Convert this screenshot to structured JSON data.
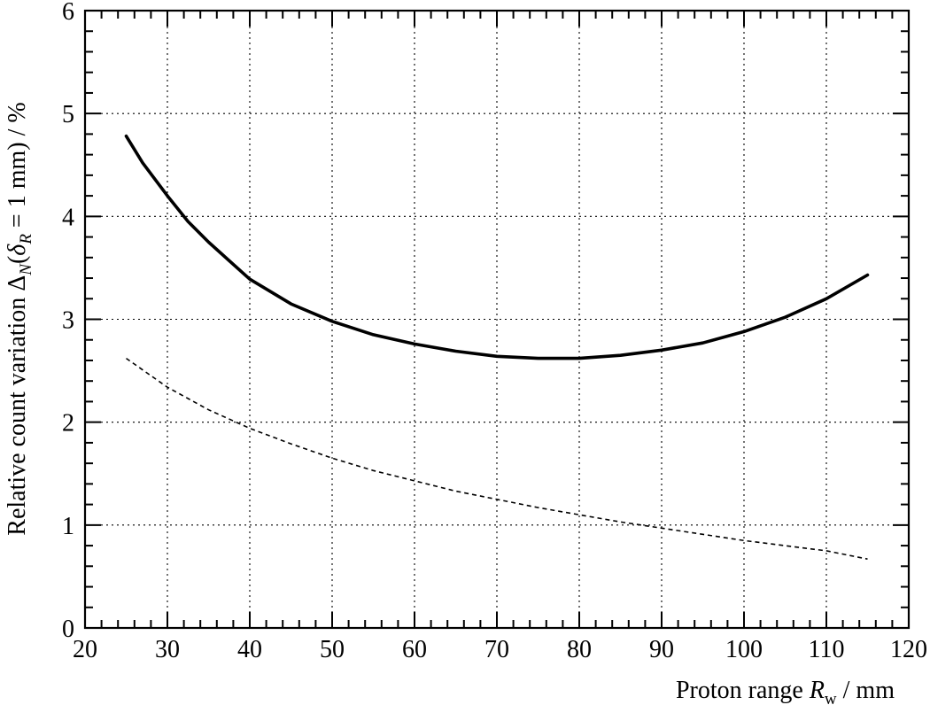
{
  "chart_data": {
    "type": "line",
    "title": "",
    "xlabel": "Proton range R_w / mm",
    "ylabel": "Relative count variation Δ_N(δ_R = 1 mm) / %",
    "xlim": [
      20,
      120
    ],
    "ylim": [
      0,
      6
    ],
    "x_major_ticks": [
      20,
      30,
      40,
      50,
      60,
      70,
      80,
      90,
      100,
      110,
      120
    ],
    "y_major_ticks": [
      0,
      1,
      2,
      3,
      4,
      5,
      6
    ],
    "x_tick_labels": [
      "20",
      "30",
      "40",
      "50",
      "60",
      "70",
      "80",
      "90",
      "100",
      "110",
      "120"
    ],
    "y_tick_labels": [
      "0",
      "1",
      "2",
      "3",
      "4",
      "5",
      "6"
    ],
    "grid": true,
    "legend": "none",
    "series": [
      {
        "style": "solid",
        "color": "#000000",
        "x": [
          25,
          27,
          30,
          32.5,
          35,
          40,
          45,
          50,
          55,
          60,
          65,
          70,
          75,
          77,
          80,
          85,
          90,
          95,
          100,
          105,
          110,
          115
        ],
        "y": [
          4.78,
          4.52,
          4.2,
          3.95,
          3.75,
          3.39,
          3.15,
          2.98,
          2.85,
          2.76,
          2.69,
          2.64,
          2.62,
          2.62,
          2.62,
          2.65,
          2.7,
          2.77,
          2.88,
          3.02,
          3.2,
          3.43
        ]
      },
      {
        "style": "dashed",
        "color": "#000000",
        "x": [
          25,
          30,
          35,
          40,
          45,
          50,
          55,
          60,
          65,
          70,
          75,
          80,
          85,
          90,
          95,
          100,
          105,
          110,
          115
        ],
        "y": [
          2.62,
          2.34,
          2.12,
          1.94,
          1.79,
          1.65,
          1.53,
          1.43,
          1.33,
          1.25,
          1.17,
          1.1,
          1.03,
          0.97,
          0.91,
          0.85,
          0.8,
          0.75,
          0.67
        ]
      }
    ]
  }
}
